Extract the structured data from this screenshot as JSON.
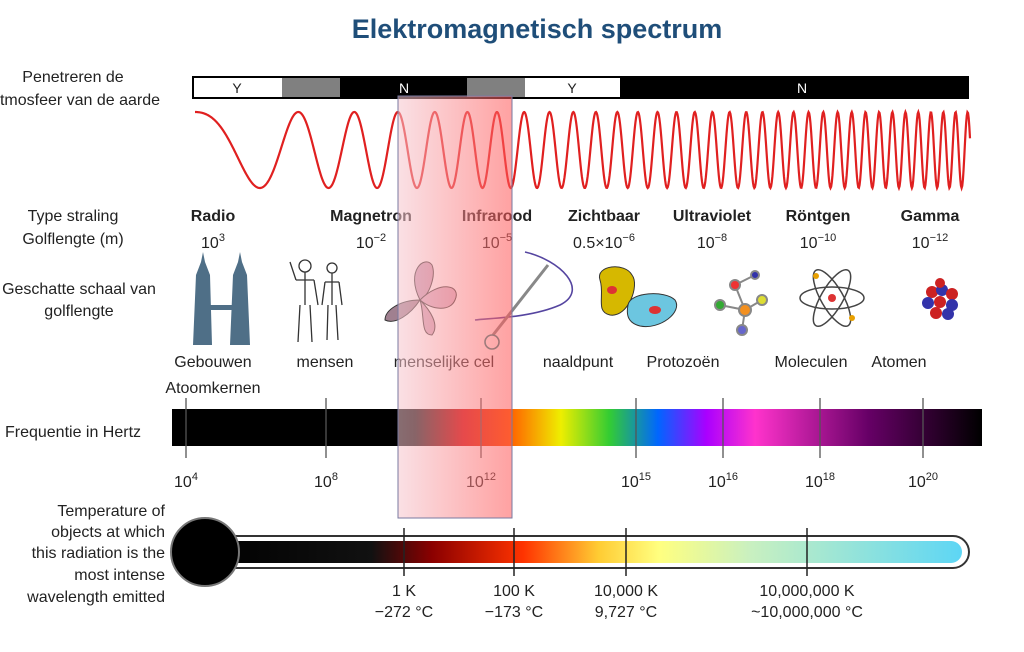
{
  "title": "Elektromagnetisch spectrum",
  "row_labels": {
    "atmosphere": [
      "Penetreren de",
      "tmosfeer van de aarde"
    ],
    "type": "Type straling",
    "wavelength": "Golflengte (m)",
    "scale": [
      "Geschatte schaal van",
      "golflengte"
    ],
    "frequency": "Frequentie in Hertz",
    "temperature": [
      "Temperature of",
      "objects at which",
      "this radiation is the",
      "most intense",
      "wavelength emitted"
    ]
  },
  "atmosphere_bar": [
    "Y",
    "N",
    "Y",
    "N"
  ],
  "types": [
    {
      "name": "Radio",
      "wavelength": {
        "base": "10",
        "exp": "3"
      }
    },
    {
      "name": "Magnetron",
      "wavelength": {
        "base": "10",
        "exp": "−2"
      }
    },
    {
      "name": "Infrarood",
      "wavelength": {
        "base": "10",
        "exp": "−5"
      }
    },
    {
      "name": "Zichtbaar",
      "wavelength": {
        "base": "0.5×10",
        "exp": "−6"
      }
    },
    {
      "name": "Ultraviolet",
      "wavelength": {
        "base": "10",
        "exp": "−8"
      }
    },
    {
      "name": "Röntgen",
      "wavelength": {
        "base": "10",
        "exp": "−10"
      }
    },
    {
      "name": "Gamma",
      "wavelength": {
        "base": "10",
        "exp": "−12"
      }
    }
  ],
  "scale": [
    "Gebouwen",
    "mensen",
    "menselijke cel",
    "naaldpunt",
    "Protozoën",
    "Moleculen",
    "Atomen",
    "Atoomkernen"
  ],
  "frequency_ticks": [
    {
      "base": "10",
      "exp": "4"
    },
    {
      "base": "10",
      "exp": "8"
    },
    {
      "base": "10",
      "exp": "12"
    },
    {
      "base": "10",
      "exp": "15"
    },
    {
      "base": "10",
      "exp": "16"
    },
    {
      "base": "10",
      "exp": "18"
    },
    {
      "base": "10",
      "exp": "20"
    }
  ],
  "temperatures": [
    {
      "kelvin": "1 K",
      "celsius": "−272 °C"
    },
    {
      "kelvin": "100 K",
      "celsius": "−173 °C"
    },
    {
      "kelvin": "10,000 K",
      "celsius": "9,727 °C"
    },
    {
      "kelvin": "10,000,000 K",
      "celsius": "~10,000,000 °C"
    }
  ]
}
